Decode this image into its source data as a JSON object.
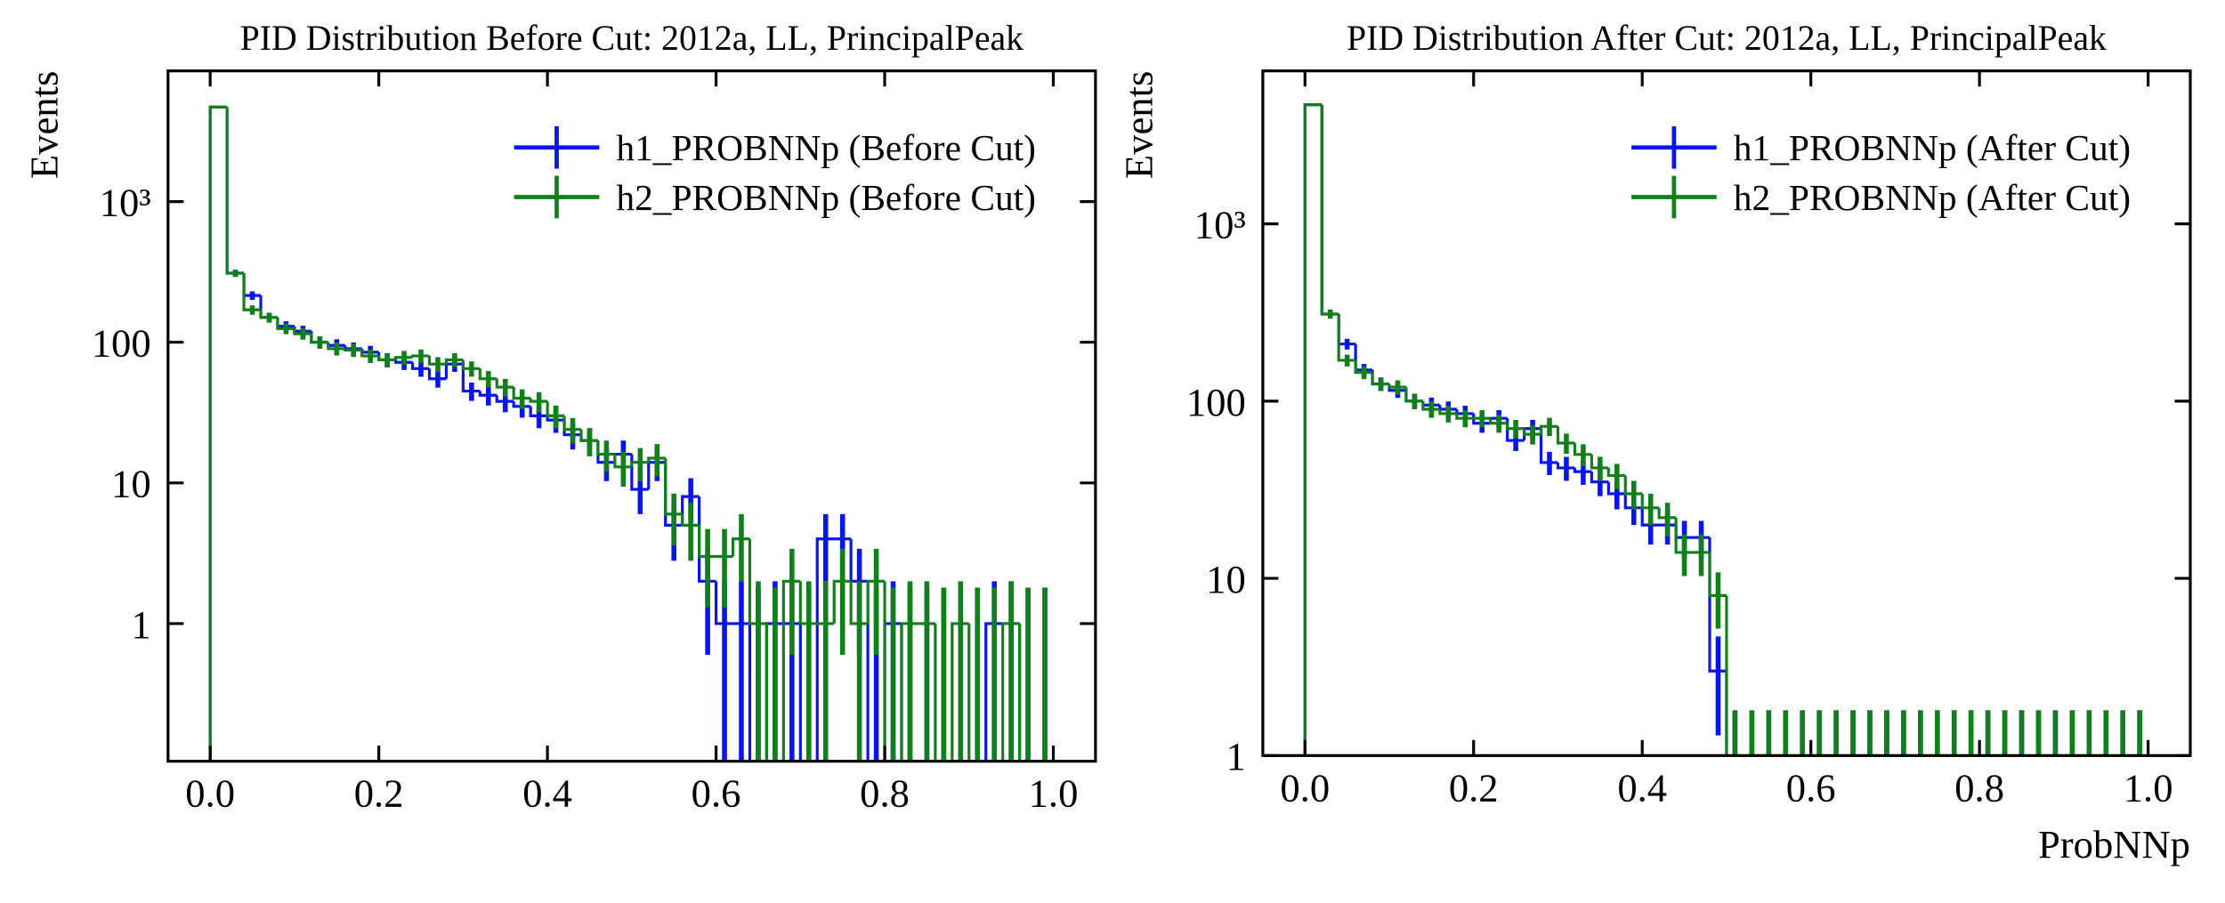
{
  "chart_data": [
    {
      "type": "histogram",
      "title": "PID Distribution Before Cut: 2012a, LL, PrincipalPeak",
      "ylabel": "Events",
      "bins": [
        0,
        0.02,
        0.04,
        0.06,
        0.08,
        0.1,
        0.12,
        0.14,
        0.16,
        0.18,
        0.2,
        0.22,
        0.24,
        0.26,
        0.28,
        0.3,
        0.32,
        0.34,
        0.36,
        0.38,
        0.4,
        0.42,
        0.44,
        0.46,
        0.48,
        0.5,
        0.52,
        0.54,
        0.56,
        0.58,
        0.6,
        0.62,
        0.64,
        0.66,
        0.68,
        0.7,
        0.72,
        0.74,
        0.76,
        0.78,
        0.8,
        0.82,
        0.84,
        0.86,
        0.88,
        0.9,
        0.92,
        0.94,
        0.96,
        0.98,
        1
      ],
      "series": [
        {
          "name": "h1_PROBNNp (Before Cut)",
          "color": "#0a14f0",
          "values": [
            4700,
            310,
            215,
            150,
            130,
            120,
            100,
            95,
            90,
            85,
            75,
            72,
            65,
            55,
            70,
            45,
            42,
            38,
            35,
            30,
            28,
            22,
            20,
            14,
            16,
            9,
            14,
            5,
            8,
            2,
            1,
            1,
            0,
            1,
            1,
            0,
            4,
            4,
            2,
            0,
            1,
            0,
            0,
            0,
            0,
            0,
            1,
            1,
            0,
            0
          ],
          "errors": [
            69,
            18,
            15,
            12,
            11,
            11,
            10,
            10,
            9.5,
            9.2,
            8.7,
            8.5,
            8.1,
            7.4,
            8.4,
            6.7,
            6.5,
            6.2,
            5.9,
            5.5,
            5.3,
            4.7,
            4.5,
            3.7,
            4,
            3,
            3.7,
            2.2,
            2.8,
            1.4,
            1,
            1,
            1.8,
            1,
            1,
            1.8,
            2,
            2,
            1.4,
            1.8,
            1,
            1.8,
            1.8,
            1.8,
            1.8,
            1.8,
            1,
            1,
            1.8,
            1.8
          ]
        },
        {
          "name": "h2_PROBNNp (Before Cut)",
          "color": "#12801a",
          "values": [
            4700,
            310,
            170,
            150,
            125,
            115,
            100,
            90,
            88,
            80,
            75,
            78,
            80,
            70,
            75,
            65,
            55,
            48,
            40,
            38,
            30,
            24,
            20,
            16,
            13,
            14,
            15,
            6,
            5,
            3,
            3,
            4,
            1,
            0,
            2,
            1,
            1,
            2,
            1,
            2,
            0,
            1,
            1,
            0,
            1,
            0,
            0,
            1,
            0,
            0
          ],
          "errors": [
            69,
            18,
            13,
            12,
            11,
            10.7,
            10,
            9.5,
            9.4,
            8.9,
            8.7,
            8.8,
            8.9,
            8.4,
            8.7,
            8.1,
            7.4,
            6.9,
            6.3,
            6.2,
            5.5,
            4.9,
            4.5,
            4,
            3.6,
            3.7,
            3.9,
            2.4,
            2.2,
            1.7,
            1.7,
            2,
            1,
            1.8,
            1.4,
            1,
            1,
            1.4,
            1,
            1.4,
            1.8,
            1,
            1,
            1.8,
            1,
            1.8,
            1.8,
            1,
            1.8,
            1.8
          ]
        }
      ],
      "xlim": [
        -0.05,
        1.05
      ],
      "xticks": [
        {
          "value": 0,
          "label": "0.0"
        },
        0.2,
        0.4,
        0.6,
        0.8,
        {
          "value": 1,
          "label": "1.0"
        }
      ],
      "ylim": [
        0.105,
        8500
      ],
      "log_y": true,
      "yticks": [
        1,
        10,
        100,
        {
          "value": 1000,
          "label": "10³"
        }
      ],
      "legend": "upper right"
    },
    {
      "type": "histogram",
      "title": "PID Distribution After Cut: 2012a, LL, PrincipalPeak",
      "ylabel": "Events",
      "xlabel": "ProbNNp",
      "bins": [
        0,
        0.02,
        0.04,
        0.06,
        0.08,
        0.1,
        0.12,
        0.14,
        0.16,
        0.18,
        0.2,
        0.22,
        0.24,
        0.26,
        0.28,
        0.3,
        0.32,
        0.34,
        0.36,
        0.38,
        0.4,
        0.42,
        0.44,
        0.46,
        0.48,
        0.5,
        0.52,
        0.54,
        0.56,
        0.58,
        0.6,
        0.62,
        0.64,
        0.66,
        0.68,
        0.7,
        0.72,
        0.74,
        0.76,
        0.78,
        0.8,
        0.82,
        0.84,
        0.86,
        0.88,
        0.9,
        0.92,
        0.94,
        0.96,
        0.98,
        1
      ],
      "series": [
        {
          "name": "h1_PROBNNp (After Cut)",
          "color": "#0a14f0",
          "values": [
            4700,
            310,
            210,
            150,
            125,
            115,
            100,
            95,
            90,
            85,
            75,
            80,
            60,
            70,
            45,
            42,
            40,
            35,
            30,
            25,
            20,
            20,
            17,
            17,
            3,
            0,
            0,
            0,
            0,
            0,
            0,
            0,
            0,
            0,
            0,
            0,
            0,
            0,
            0,
            0,
            0,
            0,
            0,
            0,
            0,
            0,
            0,
            0,
            0,
            0
          ],
          "errors": [
            69,
            18,
            14.5,
            12,
            11,
            10.7,
            10,
            9.7,
            9.5,
            9.2,
            8.7,
            8.9,
            7.7,
            8.4,
            6.7,
            6.5,
            6.3,
            5.9,
            5.5,
            5,
            4.5,
            4.5,
            4.1,
            4.1,
            1.7,
            1.8,
            1.8,
            1.8,
            1.8,
            1.8,
            1.8,
            1.8,
            1.8,
            1.8,
            1.8,
            1.8,
            1.8,
            1.8,
            1.8,
            1.8,
            1.8,
            1.8,
            1.8,
            1.8,
            1.8,
            1.8,
            1.8,
            1.8,
            1.8,
            1.8
          ]
        },
        {
          "name": "h2_PROBNNp (After Cut)",
          "color": "#12801a",
          "values": [
            4700,
            310,
            170,
            145,
            125,
            120,
            100,
            90,
            85,
            80,
            80,
            75,
            70,
            65,
            72,
            58,
            50,
            42,
            38,
            30,
            25,
            22,
            14,
            14,
            8,
            0,
            0,
            0,
            0,
            0,
            0,
            0,
            0,
            0,
            0,
            0,
            0,
            0,
            0,
            0,
            0,
            0,
            0,
            0,
            0,
            0,
            0,
            0,
            0,
            0
          ],
          "errors": [
            69,
            18,
            13,
            12,
            11,
            11,
            10,
            9.5,
            9.2,
            8.9,
            8.9,
            8.7,
            8.4,
            8.1,
            8.5,
            7.6,
            7.1,
            6.5,
            6.2,
            5.5,
            5,
            4.7,
            3.7,
            3.7,
            2.8,
            1.8,
            1.8,
            1.8,
            1.8,
            1.8,
            1.8,
            1.8,
            1.8,
            1.8,
            1.8,
            1.8,
            1.8,
            1.8,
            1.8,
            1.8,
            1.8,
            1.8,
            1.8,
            1.8,
            1.8,
            1.8,
            1.8,
            1.8,
            1.8,
            1.8
          ]
        }
      ],
      "xlim": [
        -0.05,
        1.05
      ],
      "xticks": [
        {
          "value": 0,
          "label": "0.0"
        },
        0.2,
        0.4,
        0.6,
        0.8,
        {
          "value": 1,
          "label": "1.0"
        }
      ],
      "ylim": [
        1,
        7300
      ],
      "log_y": true,
      "yticks": [
        1,
        10,
        100,
        {
          "value": 1000,
          "label": "10³"
        }
      ],
      "legend": "upper right"
    }
  ]
}
